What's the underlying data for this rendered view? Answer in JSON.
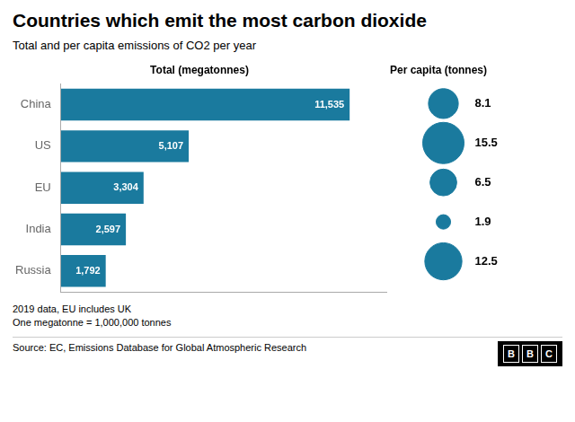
{
  "chart_data": [
    {
      "type": "bar",
      "orientation": "horizontal",
      "title": "Countries which emit the most carbon dioxide",
      "subtitle": "Total and per capita emissions of CO2 per year",
      "xlabel": "Total (megatonnes)",
      "categories": [
        "China",
        "US",
        "EU",
        "India",
        "Russia"
      ],
      "values": [
        11535,
        5107,
        3304,
        2597,
        1792
      ],
      "value_labels": [
        "11,535",
        "5,107",
        "3,304",
        "2,597",
        "1,792"
      ],
      "color": "#1a7a9e",
      "xlim": [
        0,
        13000
      ],
      "xticks": [],
      "grid": false,
      "data_labels": true,
      "tick_labels": "y",
      "annotations": [
        "2019 data, EU includes UK",
        "One megatonne = 1,000,000 tonnes"
      ],
      "source": "Source: EC, Emissions Database for Global Atmospheric Research",
      "logo": "BBC"
    },
    {
      "type": "bubble",
      "xlabel": "Per capita (tonnes)",
      "categories": [
        "China",
        "US",
        "EU",
        "India",
        "Russia"
      ],
      "values": [
        8.1,
        15.5,
        6.5,
        1.9,
        12.5
      ],
      "color": "#1a7a9e",
      "grid": false,
      "data_labels": true,
      "tick_labels": false
    }
  ]
}
